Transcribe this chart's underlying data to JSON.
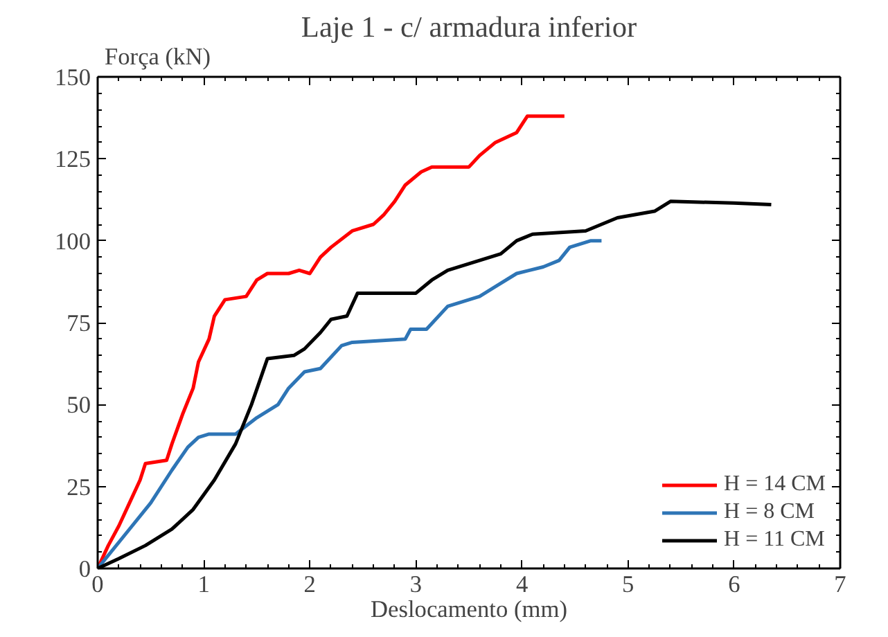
{
  "chart_data": {
    "type": "line",
    "title": "Laje 1 - c/ armadura inferior",
    "xlabel": "Deslocamento (mm)",
    "ylabel": "Força (kN)",
    "xlim": [
      0,
      7
    ],
    "ylim": [
      0,
      150
    ],
    "xticks": [
      0,
      1,
      2,
      3,
      4,
      5,
      6,
      7
    ],
    "yticks": [
      0,
      25,
      50,
      75,
      100,
      125,
      150
    ],
    "grid": false,
    "legend": "bottom right",
    "marker": "none",
    "line_style": "solid",
    "series": [
      {
        "name": "H = 14 CM",
        "color": "#ff0000",
        "x": [
          0,
          0.1,
          0.2,
          0.3,
          0.4,
          0.45,
          0.65,
          0.7,
          0.8,
          0.9,
          0.95,
          1.05,
          1.1,
          1.2,
          1.4,
          1.5,
          1.6,
          1.8,
          1.9,
          2.0,
          2.1,
          2.2,
          2.4,
          2.6,
          2.7,
          2.8,
          2.9,
          3.05,
          3.15,
          3.5,
          3.6,
          3.75,
          3.95,
          4.05,
          4.4
        ],
        "values": [
          0,
          7,
          13,
          20,
          27,
          32,
          33,
          38,
          47,
          55,
          63,
          70,
          77,
          82,
          83,
          88,
          90,
          90,
          91,
          90,
          95,
          98,
          103,
          105,
          108,
          112,
          117,
          121,
          122.5,
          122.5,
          126,
          130,
          133,
          138,
          138
        ]
      },
      {
        "name": "H = 8 CM",
        "color": "#2e75b6",
        "x": [
          0,
          0.3,
          0.5,
          0.7,
          0.85,
          0.95,
          1.05,
          1.3,
          1.5,
          1.7,
          1.8,
          1.95,
          2.1,
          2.3,
          2.4,
          2.9,
          2.95,
          3.1,
          3.3,
          3.6,
          3.75,
          3.95,
          4.2,
          4.35,
          4.45,
          4.65,
          4.75
        ],
        "values": [
          0,
          12,
          20,
          30,
          37,
          40,
          41,
          41,
          46,
          50,
          55,
          60,
          61,
          68,
          69,
          70,
          73,
          73,
          80,
          83,
          86,
          90,
          92,
          94,
          98,
          100,
          100
        ]
      },
      {
        "name": "H = 11 CM",
        "color": "#000000",
        "x": [
          0,
          0.2,
          0.45,
          0.7,
          0.9,
          1.1,
          1.3,
          1.45,
          1.6,
          1.85,
          1.95,
          2.1,
          2.2,
          2.35,
          2.45,
          3.0,
          3.15,
          3.3,
          3.8,
          3.95,
          4.1,
          4.6,
          4.75,
          4.9,
          5.25,
          5.4,
          6.0,
          6.35
        ],
        "values": [
          0,
          3,
          7,
          12,
          18,
          27,
          38,
          50,
          64,
          65,
          67,
          72,
          76,
          77,
          84,
          84,
          88,
          91,
          96,
          100,
          102,
          103,
          105,
          107,
          109,
          112,
          111.5,
          111
        ]
      }
    ]
  }
}
